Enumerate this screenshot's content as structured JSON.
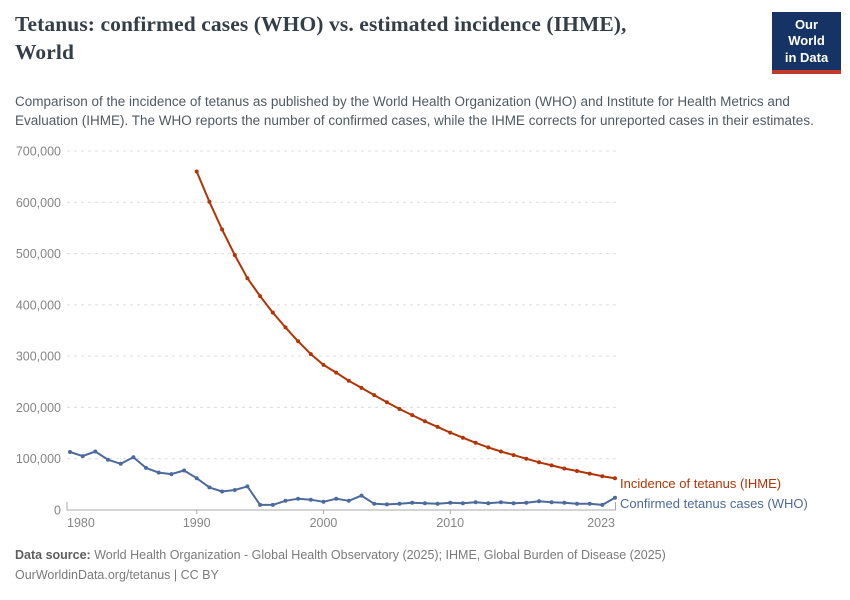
{
  "header": {
    "title_line1": "Tetanus: confirmed cases (WHO) vs. estimated incidence (IHME),",
    "title_line2": "World",
    "subtitle": "Comparison of the incidence of tetanus as published by the World Health Organization (WHO) and Institute for Health Metrics and Evaluation (IHME). The WHO reports the number of confirmed cases, while the IHME corrects for unreported cases in their estimates.",
    "logo": {
      "line1": "Our World",
      "line2": "in Data",
      "bg_color": "#153365",
      "accent_color": "#c0392b",
      "text_color": "#ffffff"
    }
  },
  "chart_data": {
    "type": "line",
    "title": "Tetanus: confirmed cases (WHO) vs. estimated incidence (IHME), World",
    "xlabel": "",
    "ylabel": "",
    "ylim": [
      0,
      700000
    ],
    "yticks": [
      0,
      100000,
      200000,
      300000,
      400000,
      500000,
      600000,
      700000
    ],
    "ytick_labels": [
      "0",
      "100,000",
      "200,000",
      "300,000",
      "400,000",
      "500,000",
      "600,000",
      "700,000"
    ],
    "xticks": [
      1980,
      1990,
      2000,
      2010,
      2023
    ],
    "xtick_labels": [
      "1980",
      "1990",
      "2000",
      "2010",
      "2023"
    ],
    "xlim": [
      1980,
      2023
    ],
    "grid": "horizontal-dashed",
    "legend_position": "end-of-line-labels",
    "grid_color": "#dcdcdc",
    "axis_color": "#a8a8a8",
    "tick_label_color": "#858585",
    "series": [
      {
        "name": "Incidence of tetanus (IHME)",
        "color": "#b13507",
        "years": [
          1990,
          1991,
          1992,
          1993,
          1994,
          1995,
          1996,
          1997,
          1998,
          1999,
          2000,
          2001,
          2002,
          2003,
          2004,
          2005,
          2006,
          2007,
          2008,
          2009,
          2010,
          2011,
          2012,
          2013,
          2014,
          2015,
          2016,
          2017,
          2018,
          2019,
          2020,
          2021,
          2022,
          2023
        ],
        "values": [
          660000,
          601000,
          547000,
          497000,
          452000,
          417000,
          385000,
          356000,
          329000,
          304000,
          283000,
          268000,
          252000,
          238000,
          224000,
          210000,
          197000,
          185000,
          173000,
          162000,
          151000,
          141000,
          131000,
          122000,
          114000,
          107000,
          100000,
          93000,
          87000,
          81000,
          76000,
          71000,
          66000,
          62000
        ]
      },
      {
        "name": "Confirmed tetanus cases (WHO)",
        "color": "#4c6a9c",
        "years": [
          1980,
          1981,
          1982,
          1983,
          1984,
          1985,
          1986,
          1987,
          1988,
          1989,
          1990,
          1991,
          1992,
          1993,
          1994,
          1995,
          1996,
          1997,
          1998,
          1999,
          2000,
          2001,
          2002,
          2003,
          2004,
          2005,
          2006,
          2007,
          2008,
          2009,
          2010,
          2011,
          2012,
          2013,
          2014,
          2015,
          2016,
          2017,
          2018,
          2019,
          2020,
          2021,
          2022,
          2023
        ],
        "values": [
          113000,
          105000,
          114000,
          98000,
          90000,
          103000,
          82000,
          73000,
          70000,
          77000,
          62000,
          44000,
          36000,
          39000,
          46000,
          10000,
          10000,
          18000,
          22000,
          20000,
          16000,
          22000,
          18000,
          28000,
          12000,
          11000,
          12000,
          14000,
          13000,
          12000,
          14000,
          13000,
          15000,
          13000,
          15000,
          13000,
          14000,
          17000,
          15000,
          14000,
          12000,
          12000,
          10000,
          24000
        ]
      }
    ]
  },
  "footer": {
    "data_source_label": "Data source:",
    "data_source_text": " World Health Organization - Global Health Observatory (2025); IHME, Global Burden of Disease (2025)",
    "license_line": "OurWorldinData.org/tetanus | CC BY"
  }
}
